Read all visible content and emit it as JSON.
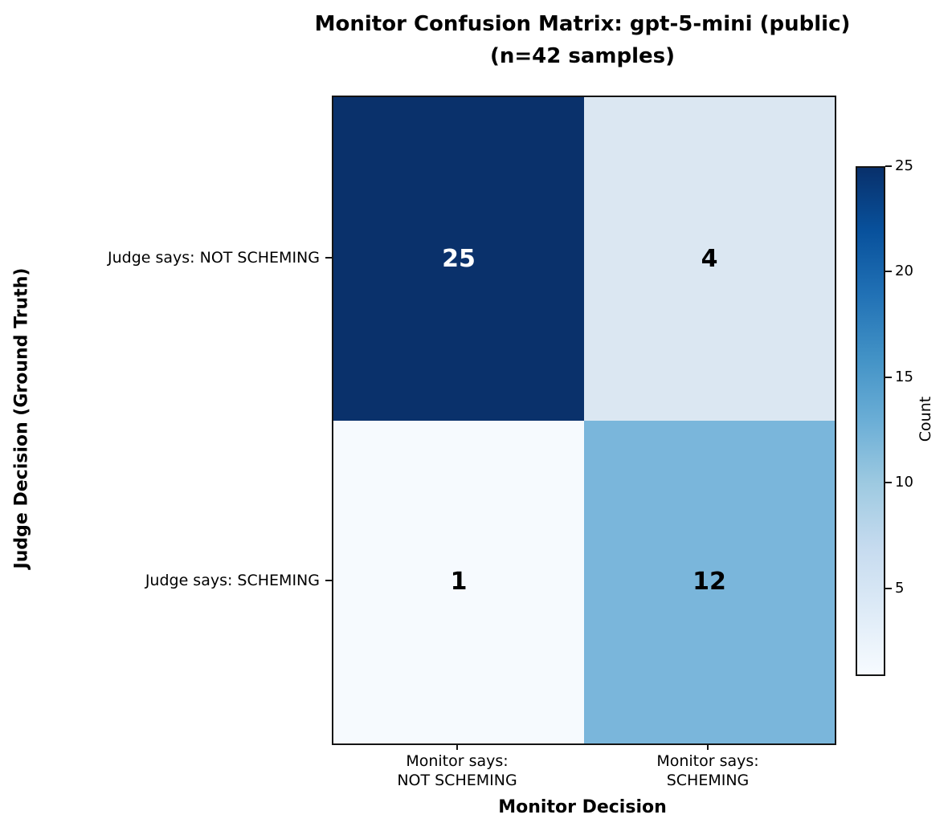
{
  "chart_data": {
    "type": "heatmap",
    "title_line1": "Monitor Confusion Matrix: gpt-5-mini (public)",
    "title_line2": "(n=42 samples)",
    "xlabel": "Monitor Decision",
    "ylabel": "Judge Decision (Ground Truth)",
    "y_tick_labels": [
      "Judge says: NOT SCHEMING",
      "Judge says: SCHEMING"
    ],
    "x_tick_labels": [
      {
        "line1": "Monitor says:",
        "line2": "NOT SCHEMING"
      },
      {
        "line1": "Monitor says:",
        "line2": "SCHEMING"
      }
    ],
    "matrix": [
      [
        25,
        4
      ],
      [
        1,
        12
      ]
    ],
    "cell_colors": [
      [
        "#0a316b",
        "#dbe7f2"
      ],
      [
        "#f6fafe",
        "#7ab6db"
      ]
    ],
    "cell_text_colors": [
      [
        "#ffffff",
        "#000000"
      ],
      [
        "#000000",
        "#000000"
      ]
    ],
    "colormap": "Blues",
    "colormap_stops": [
      "#f7fbff",
      "#deebf7",
      "#c6dbef",
      "#9ecae1",
      "#6baed6",
      "#4292c6",
      "#2171b5",
      "#08519c",
      "#08306b"
    ],
    "colorbar": {
      "label": "Count",
      "ticks": [
        5,
        10,
        15,
        20,
        25
      ],
      "vmin": 1,
      "vmax": 25
    },
    "legend_position": "right",
    "grid": false
  }
}
